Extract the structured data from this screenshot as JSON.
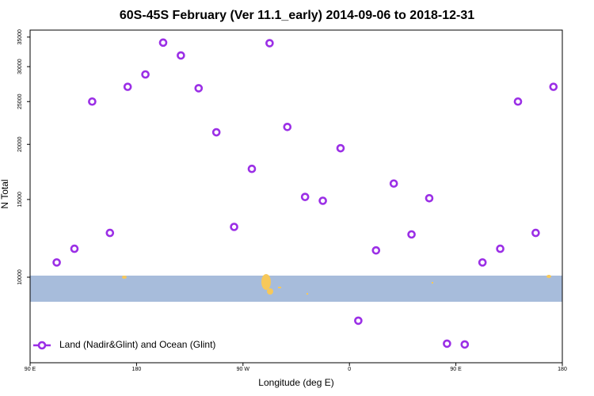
{
  "chart_data": {
    "type": "scatter",
    "title": "60S-45S February (Ver 11.1_early)   2014-09-06 to 2018-12-31",
    "xlabel": "Longitude (deg E)",
    "ylabel": "N Total",
    "log_y": true,
    "legend": "bottom-left",
    "xlim": [
      90,
      540
    ],
    "xticks": [
      {
        "value": 90,
        "label": "90 E"
      },
      {
        "value": 180,
        "label": "180"
      },
      {
        "value": 270,
        "label": "90 W"
      },
      {
        "value": 360,
        "label": "0"
      },
      {
        "value": 450,
        "label": "90 E"
      },
      {
        "value": 540,
        "label": "180"
      }
    ],
    "ylim": [
      6400,
      36300
    ],
    "yticks": [
      10000,
      15000,
      20000,
      25000,
      30000,
      35000
    ],
    "series": [
      {
        "name": "Land (Nadir&Glint) and Ocean (Glint)",
        "color": "#9b2fe6",
        "x": [
          112.5,
          127.5,
          142.5,
          157.5,
          172.5,
          187.5,
          202.5,
          217.5,
          232.5,
          247.5,
          262.5,
          277.5,
          292.5,
          307.5,
          322.5,
          337.5,
          352.5,
          367.5,
          382.5,
          397.5,
          412.5,
          427.5,
          442.5,
          457.5,
          472.5,
          487.5,
          502.5,
          517.5,
          532.5
        ],
        "values": [
          10800,
          11600,
          25000,
          12600,
          27000,
          28800,
          34000,
          31800,
          26800,
          21300,
          13000,
          17600,
          33900,
          21900,
          15200,
          14900,
          19600,
          7970,
          11500,
          16300,
          12500,
          15100,
          7070,
          7040,
          10800,
          11600,
          25000,
          12600,
          27000
        ]
      }
    ]
  }
}
